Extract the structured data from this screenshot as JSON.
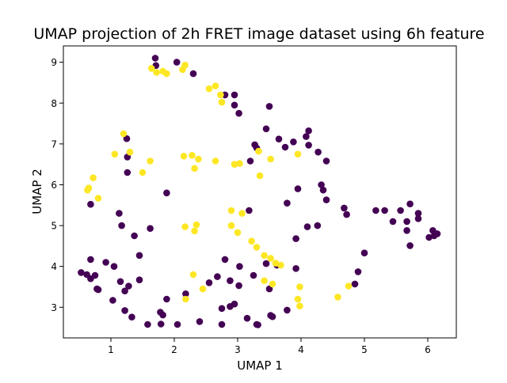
{
  "chart_data": {
    "type": "scatter",
    "title": "UMAP projection of 2h FRET image dataset using 6h feature",
    "xlabel": "UMAP 1",
    "ylabel": "UMAP 2",
    "xlim": [
      0.25,
      6.45
    ],
    "ylim": [
      2.25,
      9.4
    ],
    "x_ticks": [
      1,
      2,
      3,
      4,
      5,
      6
    ],
    "y_ticks": [
      3,
      4,
      5,
      6,
      7,
      8,
      9
    ],
    "grid": false,
    "legend": "none",
    "series": [
      {
        "color": "#440154",
        "points": [
          [
            1.7,
            9.1
          ],
          [
            1.71,
            8.92
          ],
          [
            2.04,
            9.0
          ],
          [
            2.3,
            8.72
          ],
          [
            2.8,
            8.2
          ],
          [
            2.95,
            8.2
          ],
          [
            2.95,
            7.95
          ],
          [
            3.02,
            7.75
          ],
          [
            3.5,
            7.92
          ],
          [
            3.45,
            7.37
          ],
          [
            3.65,
            7.12
          ],
          [
            3.88,
            7.05
          ],
          [
            4.08,
            7.18
          ],
          [
            4.12,
            7.32
          ],
          [
            4.12,
            6.97
          ],
          [
            4.27,
            6.8
          ],
          [
            4.4,
            6.58
          ],
          [
            3.75,
            6.92
          ],
          [
            3.27,
            6.98
          ],
          [
            3.3,
            6.9
          ],
          [
            3.2,
            6.58
          ],
          [
            1.25,
            7.13
          ],
          [
            1.26,
            6.68
          ],
          [
            1.26,
            6.3
          ],
          [
            0.68,
            5.52
          ],
          [
            1.88,
            5.8
          ],
          [
            3.95,
            5.9
          ],
          [
            4.32,
            6.0
          ],
          [
            4.35,
            5.87
          ],
          [
            4.4,
            5.63
          ],
          [
            3.78,
            5.55
          ],
          [
            3.18,
            5.37
          ],
          [
            1.13,
            5.3
          ],
          [
            1.17,
            5.0
          ],
          [
            1.37,
            4.75
          ],
          [
            1.62,
            4.93
          ],
          [
            3.92,
            4.68
          ],
          [
            4.1,
            4.97
          ],
          [
            4.26,
            5.0
          ],
          [
            4.68,
            5.43
          ],
          [
            4.72,
            5.27
          ],
          [
            5.18,
            5.37
          ],
          [
            5.32,
            5.37
          ],
          [
            5.45,
            5.1
          ],
          [
            5.57,
            5.37
          ],
          [
            5.67,
            5.1
          ],
          [
            5.67,
            4.88
          ],
          [
            5.72,
            5.53
          ],
          [
            5.85,
            5.3
          ],
          [
            5.85,
            5.17
          ],
          [
            5.72,
            4.51
          ],
          [
            6.02,
            4.71
          ],
          [
            6.08,
            4.88
          ],
          [
            6.1,
            4.75
          ],
          [
            6.15,
            4.8
          ],
          [
            5.0,
            4.33
          ],
          [
            0.53,
            3.85
          ],
          [
            0.62,
            3.8
          ],
          [
            0.68,
            3.7
          ],
          [
            0.68,
            4.17
          ],
          [
            0.75,
            3.78
          ],
          [
            0.78,
            3.45
          ],
          [
            0.8,
            3.43
          ],
          [
            0.92,
            4.1
          ],
          [
            1.05,
            4.0
          ],
          [
            1.03,
            3.17
          ],
          [
            1.15,
            3.63
          ],
          [
            1.22,
            3.4
          ],
          [
            1.28,
            3.52
          ],
          [
            1.22,
            2.92
          ],
          [
            1.33,
            2.76
          ],
          [
            1.45,
            3.67
          ],
          [
            1.45,
            4.27
          ],
          [
            1.58,
            2.58
          ],
          [
            1.78,
            2.88
          ],
          [
            1.79,
            2.59
          ],
          [
            1.82,
            2.81
          ],
          [
            1.88,
            3.2
          ],
          [
            2.05,
            2.58
          ],
          [
            2.18,
            3.33
          ],
          [
            2.4,
            2.65
          ],
          [
            2.55,
            3.6
          ],
          [
            2.68,
            3.75
          ],
          [
            2.75,
            2.58
          ],
          [
            2.75,
            2.97
          ],
          [
            2.8,
            4.17
          ],
          [
            2.88,
            3.02
          ],
          [
            2.88,
            3.65
          ],
          [
            2.95,
            3.08
          ],
          [
            3.02,
            3.53
          ],
          [
            3.03,
            4.0
          ],
          [
            3.15,
            2.73
          ],
          [
            3.25,
            3.78
          ],
          [
            3.3,
            2.58
          ],
          [
            3.32,
            2.57
          ],
          [
            3.45,
            4.07
          ],
          [
            3.5,
            3.45
          ],
          [
            3.52,
            2.8
          ],
          [
            3.55,
            2.77
          ],
          [
            3.62,
            4.03
          ],
          [
            3.78,
            2.93
          ],
          [
            3.92,
            3.95
          ],
          [
            4.85,
            3.57
          ],
          [
            4.9,
            3.87
          ]
        ]
      },
      {
        "color": "#fde725",
        "points": [
          [
            1.64,
            8.85
          ],
          [
            1.72,
            8.75
          ],
          [
            1.82,
            8.78
          ],
          [
            1.88,
            8.72
          ],
          [
            2.13,
            8.82
          ],
          [
            2.17,
            8.93
          ],
          [
            2.55,
            8.35
          ],
          [
            2.65,
            8.42
          ],
          [
            2.73,
            8.2
          ],
          [
            2.75,
            8.02
          ],
          [
            1.2,
            7.25
          ],
          [
            1.3,
            6.8
          ],
          [
            1.06,
            6.75
          ],
          [
            1.62,
            6.58
          ],
          [
            1.5,
            6.3
          ],
          [
            0.72,
            6.17
          ],
          [
            0.65,
            5.92
          ],
          [
            0.63,
            5.87
          ],
          [
            0.8,
            5.67
          ],
          [
            2.15,
            6.7
          ],
          [
            2.28,
            6.72
          ],
          [
            2.32,
            6.4
          ],
          [
            2.38,
            6.63
          ],
          [
            2.65,
            6.58
          ],
          [
            2.95,
            6.5
          ],
          [
            3.03,
            6.52
          ],
          [
            3.33,
            6.82
          ],
          [
            3.35,
            6.22
          ],
          [
            3.52,
            6.63
          ],
          [
            3.95,
            6.75
          ],
          [
            2.17,
            4.97
          ],
          [
            2.35,
            5.02
          ],
          [
            2.32,
            4.87
          ],
          [
            2.9,
            5.37
          ],
          [
            3.07,
            5.3
          ],
          [
            2.9,
            5.0
          ],
          [
            3.0,
            4.83
          ],
          [
            3.22,
            4.62
          ],
          [
            3.3,
            4.47
          ],
          [
            3.42,
            4.27
          ],
          [
            3.52,
            4.2
          ],
          [
            3.6,
            4.08
          ],
          [
            3.68,
            4.03
          ],
          [
            3.42,
            3.65
          ],
          [
            3.55,
            3.57
          ],
          [
            2.3,
            3.8
          ],
          [
            2.18,
            3.2
          ],
          [
            2.45,
            3.45
          ],
          [
            3.98,
            3.5
          ],
          [
            3.95,
            3.2
          ],
          [
            3.98,
            3.03
          ],
          [
            4.58,
            3.25
          ],
          [
            4.75,
            3.52
          ]
        ]
      }
    ]
  }
}
